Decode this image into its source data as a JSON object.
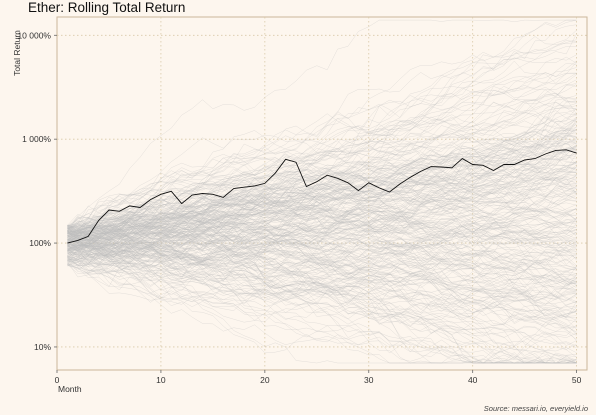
{
  "chart_data": {
    "type": "line",
    "title": "Ether: Rolling Total Return",
    "xlabel": "Month",
    "ylabel": "Total Return",
    "source": "Source: messari.io, everyield.io",
    "y_scale": "log",
    "xlim": [
      0,
      51
    ],
    "ylim": [
      6,
      15000
    ],
    "x_ticks": [
      0,
      10,
      20,
      30,
      40,
      50
    ],
    "x_tick_labels": [
      "0",
      "10",
      "20",
      "30",
      "40",
      "50"
    ],
    "y_ticks": [
      10,
      100,
      1000,
      10000
    ],
    "y_tick_labels": [
      "10%",
      "100%",
      "1 000%",
      "10 000%"
    ],
    "grid": true,
    "colors": {
      "background": "#fdf6ee",
      "highlight_line": "#111111",
      "faint_lines": "#bdbdbd",
      "grid": "#d9c9a8"
    },
    "series": [
      {
        "x": [
          1,
          2,
          3,
          4,
          5,
          6,
          7,
          8,
          9,
          10,
          11,
          12,
          13,
          14,
          15,
          16,
          17,
          18,
          19,
          20,
          21,
          22,
          23,
          24,
          25,
          26,
          27,
          28,
          29,
          30,
          31,
          32,
          33,
          34,
          35,
          36,
          37,
          38,
          39,
          40,
          41,
          42,
          43,
          44,
          45,
          46,
          47,
          48,
          49,
          50
        ],
        "values": [
          100,
          106,
          116,
          165,
          208,
          202,
          228,
          220,
          262,
          295,
          315,
          240,
          290,
          300,
          295,
          275,
          335,
          345,
          355,
          375,
          470,
          640,
          600,
          350,
          390,
          450,
          420,
          380,
          320,
          380,
          340,
          310,
          370,
          430,
          490,
          545,
          540,
          530,
          650,
          570,
          560,
          500,
          570,
          570,
          630,
          650,
          720,
          780,
          790,
          735
        ]
      }
    ],
    "background_simulations": 300
  }
}
